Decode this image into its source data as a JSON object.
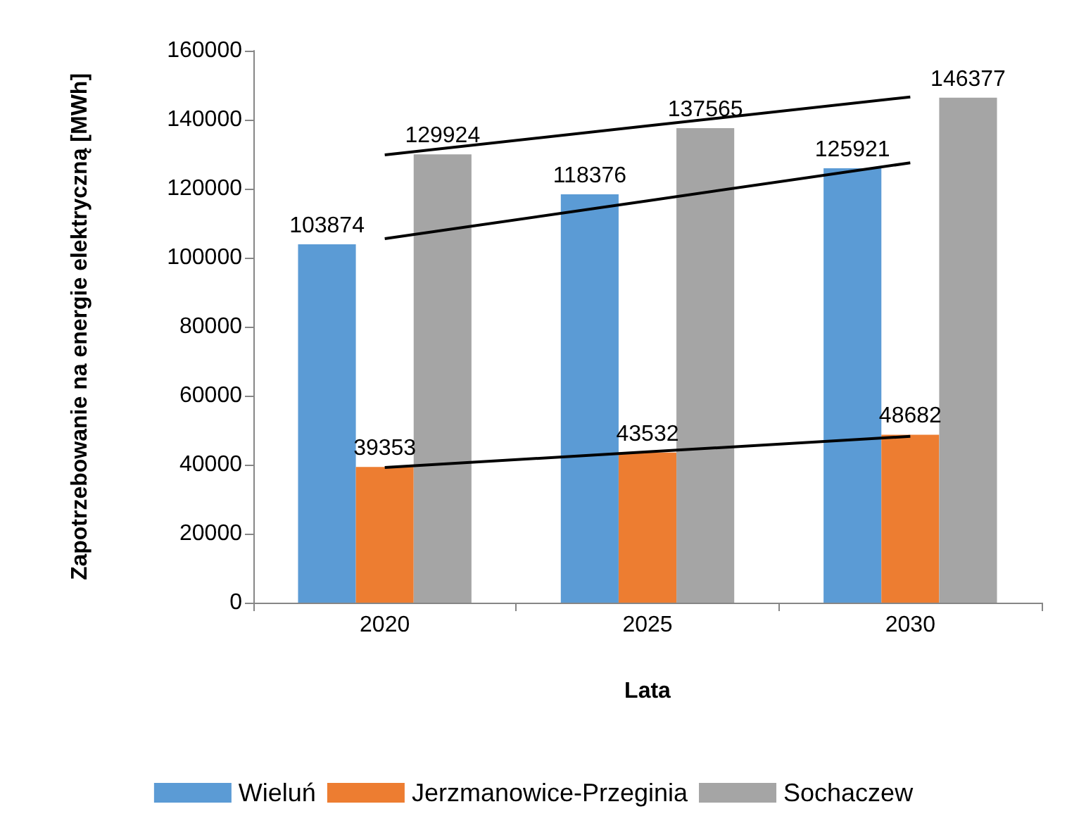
{
  "chart_data": {
    "type": "bar",
    "xlabel": "Lata",
    "ylabel": "Zapotrzebowanie na energie elektryczną [MWh]",
    "categories": [
      "2020",
      "2025",
      "2030"
    ],
    "series": [
      {
        "name": "Wieluń",
        "color": "#5b9bd5",
        "values": [
          103874,
          118376,
          125921
        ],
        "value_labels": [
          "103874",
          "118376",
          "125921"
        ]
      },
      {
        "name": "Jerzmanowice-Przeginia",
        "color": "#ed7d31",
        "values": [
          39353,
          43532,
          48682
        ],
        "value_labels": [
          "39353",
          "43532",
          "48682"
        ]
      },
      {
        "name": "Sochaczew",
        "color": "#a5a5a5",
        "values": [
          129924,
          137565,
          146377
        ],
        "value_labels": [
          "129924",
          "137565",
          "146377"
        ]
      },
      {
        "type": "line",
        "color": "#000000",
        "values": [
          105500,
          116500,
          127500
        ]
      },
      {
        "type": "line",
        "color": "#000000",
        "values": [
          129800,
          138200,
          146600
        ]
      },
      {
        "type": "line",
        "color": "#000000",
        "values": [
          39200,
          43700,
          48200
        ]
      }
    ],
    "ylim": [
      0,
      160000
    ],
    "yticks": [
      0,
      20000,
      40000,
      60000,
      80000,
      100000,
      120000,
      140000,
      160000
    ],
    "grid": false,
    "legend": "bottom",
    "marker": "none",
    "line_style": "solid"
  }
}
